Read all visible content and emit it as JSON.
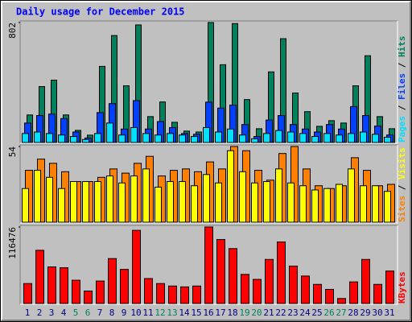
{
  "chart_data": [
    {
      "type": "bar",
      "title": "Daily usage for December 2015",
      "legend_separator": " / ",
      "series": [
        {
          "name": "Pages",
          "color": "#00e0ff",
          "values": [
            60,
            70,
            60,
            50,
            40,
            20,
            60,
            130,
            50,
            100,
            60,
            50,
            60,
            50,
            40,
            100,
            70,
            90,
            50,
            25,
            60,
            80,
            70,
            60,
            40,
            60,
            50,
            60,
            70,
            55,
            35
          ]
        },
        {
          "name": "Files",
          "color": "#0040ff",
          "values": [
            130,
            180,
            190,
            160,
            70,
            30,
            200,
            260,
            90,
            280,
            90,
            140,
            100,
            60,
            55,
            270,
            230,
            250,
            120,
            40,
            150,
            180,
            120,
            90,
            70,
            120,
            90,
            240,
            180,
            110,
            50
          ]
        },
        {
          "name": "Hits",
          "color": "#00805c",
          "values": [
            184,
            374,
            417,
            184,
            81,
            49,
            509,
            715,
            379,
            786,
            173,
            271,
            135,
            76,
            70,
            802,
            520,
            795,
            287,
            92,
            472,
            694,
            331,
            206,
            108,
            146,
            130,
            379,
            580,
            173,
            92
          ]
        }
      ],
      "ylim": [
        0,
        802
      ],
      "yticks": [
        802
      ]
    },
    {
      "type": "bar",
      "legend_separator": " / ",
      "series": [
        {
          "name": "Sites",
          "color": "#ff8000",
          "values": [
            37,
            45,
            42,
            36,
            29,
            29,
            32,
            38,
            35,
            42,
            47,
            33,
            37,
            38,
            36,
            43,
            38,
            54,
            51,
            37,
            30,
            49,
            54,
            38,
            26,
            24,
            26,
            46,
            37,
            26,
            27
          ]
        },
        {
          "name": "Visits",
          "color": "#ffff00",
          "values": [
            24,
            37,
            32,
            24,
            29,
            29,
            29,
            33,
            28,
            33,
            38,
            25,
            29,
            29,
            26,
            34,
            28,
            51,
            36,
            28,
            29,
            38,
            28,
            26,
            23,
            24,
            27,
            38,
            26,
            26,
            22
          ]
        }
      ],
      "ylim": [
        0,
        54
      ],
      "yticks": [
        54
      ]
    },
    {
      "type": "bar",
      "series": [
        {
          "name": "KBytes",
          "color": "#ff0000",
          "values": [
            30400,
            81000,
            55700,
            54400,
            35400,
            19000,
            34200,
            68400,
            51900,
            111400,
            38000,
            30400,
            26600,
            25300,
            26600,
            116476,
            97500,
            83600,
            44300,
            36700,
            67100,
            93700,
            57000,
            41800,
            29100,
            21500,
            7600,
            32900,
            67100,
            29100,
            49400
          ]
        }
      ],
      "ylim": [
        0,
        116476
      ],
      "yticks": [
        116476
      ],
      "categories": [
        "1",
        "2",
        "3",
        "4",
        "5",
        "6",
        "7",
        "8",
        "9",
        "10",
        "11",
        "12",
        "13",
        "14",
        "15",
        "16",
        "17",
        "18",
        "19",
        "20",
        "21",
        "22",
        "23",
        "24",
        "25",
        "26",
        "27",
        "28",
        "29",
        "30",
        "31"
      ],
      "category_colors": [
        "#000080",
        "#000080",
        "#000080",
        "#000080",
        "#00805c",
        "#00805c",
        "#000080",
        "#000080",
        "#000080",
        "#000080",
        "#000080",
        "#00805c",
        "#00805c",
        "#000080",
        "#000080",
        "#000080",
        "#000080",
        "#000080",
        "#00805c",
        "#00805c",
        "#000080",
        "#000080",
        "#000080",
        "#000080",
        "#000080",
        "#00805c",
        "#00805c",
        "#000080",
        "#000080",
        "#000080",
        "#000080"
      ]
    }
  ]
}
